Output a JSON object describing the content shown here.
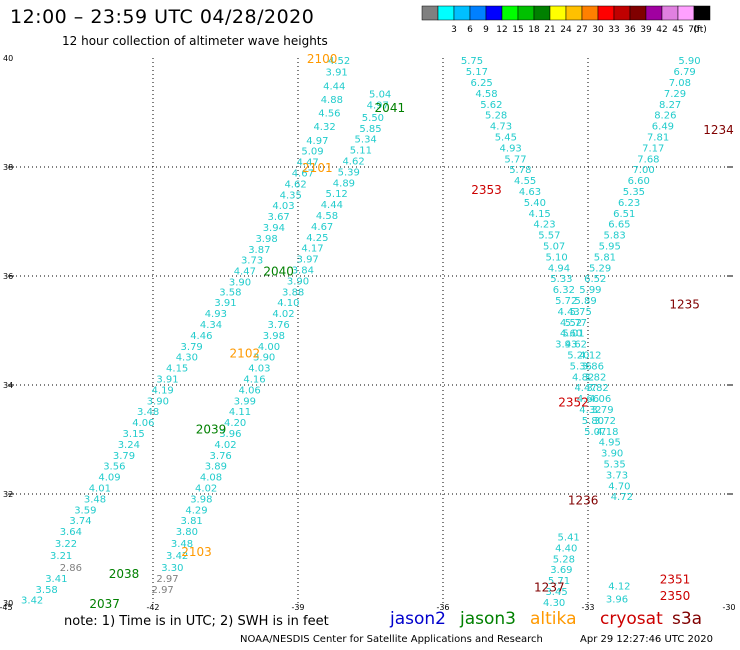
{
  "header": {
    "title": "12:00 – 23:59 UTC 04/28/2020",
    "subtitle": "12 hour collection of altimeter wave heights"
  },
  "legend": {
    "unit": "(ft)",
    "bins": [
      {
        "label": "",
        "color": "#808080"
      },
      {
        "label": "3",
        "color": "#00ffff"
      },
      {
        "label": "6",
        "color": "#00c0ff"
      },
      {
        "label": "9",
        "color": "#0080ff"
      },
      {
        "label": "12",
        "color": "#0000ff"
      },
      {
        "label": "15",
        "color": "#00ff00"
      },
      {
        "label": "18",
        "color": "#00c000"
      },
      {
        "label": "21",
        "color": "#008000"
      },
      {
        "label": "24",
        "color": "#ffff00"
      },
      {
        "label": "27",
        "color": "#ffc000"
      },
      {
        "label": "30",
        "color": "#ff8000"
      },
      {
        "label": "33",
        "color": "#ff0000"
      },
      {
        "label": "36",
        "color": "#c00000"
      },
      {
        "label": "39",
        "color": "#800000"
      },
      {
        "label": "42",
        "color": "#a000a0"
      },
      {
        "label": "45",
        "color": "#e080e0"
      },
      {
        "label": "70",
        "color": "#ffa0ff"
      },
      {
        "label": "",
        "color": "#000000"
      }
    ]
  },
  "note": "note:  1) Time is in UTC;  2) SWH is in feet",
  "satellites": [
    {
      "name": "jason2",
      "color": "#0000cc"
    },
    {
      "name": "jason3",
      "color": "#008000"
    },
    {
      "name": "altika",
      "color": "#ff9900"
    },
    {
      "name": "cryosat",
      "color": "#cc0000"
    },
    {
      "name": "s3a",
      "color": "#800000"
    }
  ],
  "footer": {
    "credit": "NOAA/NESDIS Center for Satellite Applications and Research",
    "timestamp": "Apr 29 12:27:46 UTC 2020"
  },
  "chart_data": {
    "type": "scatter",
    "title": "12:00 – 23:59 UTC 04/28/2020",
    "subtitle": "12 hour collection of altimeter wave heights",
    "xlim": [
      -45,
      -30
    ],
    "ylim": [
      30,
      40
    ],
    "xticks": [
      "-45",
      "-42",
      "-39",
      "-36",
      "-33",
      "-30"
    ],
    "yticks": [
      "30",
      "32",
      "34",
      "36",
      "38",
      "40"
    ],
    "grid": true,
    "colors": {
      "swh_cyan": "#22cccc",
      "swh_gray": "#808080",
      "time_jason3": "#008000",
      "time_altika": "#ff9900",
      "time_cryosat": "#cc0000",
      "time_s3a": "#800000"
    },
    "swh_points": [
      {
        "lon": -44.5,
        "lat": 30.06,
        "swh": "3.42"
      },
      {
        "lon": -44.2,
        "lat": 30.26,
        "swh": "3.58"
      },
      {
        "lon": -44.0,
        "lat": 30.46,
        "swh": "3.41"
      },
      {
        "lon": -43.7,
        "lat": 30.66,
        "swh": "2.86",
        "gray": true
      },
      {
        "lon": -43.9,
        "lat": 30.88,
        "swh": "3.21"
      },
      {
        "lon": -43.8,
        "lat": 31.1,
        "swh": "3.22"
      },
      {
        "lon": -43.7,
        "lat": 31.32,
        "swh": "3.64"
      },
      {
        "lon": -43.5,
        "lat": 31.52,
        "swh": "3.74"
      },
      {
        "lon": -43.4,
        "lat": 31.72,
        "swh": "3.59"
      },
      {
        "lon": -43.2,
        "lat": 31.92,
        "swh": "3.48"
      },
      {
        "lon": -43.1,
        "lat": 32.12,
        "swh": "4.01"
      },
      {
        "lon": -42.9,
        "lat": 32.32,
        "swh": "4.09"
      },
      {
        "lon": -42.8,
        "lat": 32.52,
        "swh": "3.56"
      },
      {
        "lon": -42.6,
        "lat": 32.72,
        "swh": "3.79"
      },
      {
        "lon": -42.5,
        "lat": 32.92,
        "swh": "3.24"
      },
      {
        "lon": -42.4,
        "lat": 33.12,
        "swh": "3.15"
      },
      {
        "lon": -42.2,
        "lat": 33.32,
        "swh": "4.06"
      },
      {
        "lon": -42.1,
        "lat": 33.52,
        "swh": "3.48"
      },
      {
        "lon": -41.9,
        "lat": 33.72,
        "swh": "3.90"
      },
      {
        "lon": -41.8,
        "lat": 33.92,
        "swh": "4.19"
      },
      {
        "lon": -41.7,
        "lat": 34.12,
        "swh": "3.91"
      },
      {
        "lon": -41.5,
        "lat": 34.32,
        "swh": "4.15"
      },
      {
        "lon": -41.3,
        "lat": 34.52,
        "swh": "4.30"
      },
      {
        "lon": -41.2,
        "lat": 34.72,
        "swh": "3.79"
      },
      {
        "lon": -41.0,
        "lat": 34.92,
        "swh": "4.46"
      },
      {
        "lon": -40.8,
        "lat": 35.12,
        "swh": "4.34"
      },
      {
        "lon": -40.7,
        "lat": 35.32,
        "swh": "4.93"
      },
      {
        "lon": -40.5,
        "lat": 35.52,
        "swh": "3.91"
      },
      {
        "lon": -40.4,
        "lat": 35.72,
        "swh": "3.58"
      },
      {
        "lon": -40.2,
        "lat": 35.9,
        "swh": "3.90"
      },
      {
        "lon": -40.1,
        "lat": 36.1,
        "swh": "4.47"
      },
      {
        "lon": -39.95,
        "lat": 36.3,
        "swh": "3.73"
      },
      {
        "lon": -39.8,
        "lat": 36.5,
        "swh": "3.87"
      },
      {
        "lon": -39.65,
        "lat": 36.7,
        "swh": "3.98"
      },
      {
        "lon": -39.5,
        "lat": 36.9,
        "swh": "3.94"
      },
      {
        "lon": -39.4,
        "lat": 37.1,
        "swh": "3.67"
      },
      {
        "lon": -39.3,
        "lat": 37.3,
        "swh": "4.03"
      },
      {
        "lon": -39.15,
        "lat": 37.5,
        "swh": "4.35"
      },
      {
        "lon": -39.05,
        "lat": 37.7,
        "swh": "4.62"
      },
      {
        "lon": -38.9,
        "lat": 37.9,
        "swh": "4.67"
      },
      {
        "lon": -38.8,
        "lat": 38.1,
        "swh": "4.47"
      },
      {
        "lon": -38.7,
        "lat": 38.3,
        "swh": "5.09"
      },
      {
        "lon": -38.6,
        "lat": 38.5,
        "swh": "4.97"
      },
      {
        "lon": -38.45,
        "lat": 38.75,
        "swh": "4.32"
      },
      {
        "lon": -38.35,
        "lat": 39.0,
        "swh": "4.56"
      },
      {
        "lon": -38.3,
        "lat": 39.25,
        "swh": "4.88"
      },
      {
        "lon": -38.25,
        "lat": 39.5,
        "swh": "4.44"
      },
      {
        "lon": -38.2,
        "lat": 39.75,
        "swh": "3.91"
      },
      {
        "lon": -38.15,
        "lat": 39.96,
        "swh": "4.52"
      },
      {
        "lon": -41.8,
        "lat": 30.26,
        "swh": "2.97",
        "gray": true
      },
      {
        "lon": -41.7,
        "lat": 30.46,
        "swh": "2.97",
        "gray": true
      },
      {
        "lon": -41.6,
        "lat": 30.66,
        "swh": "3.30"
      },
      {
        "lon": -41.5,
        "lat": 30.88,
        "swh": "3.42"
      },
      {
        "lon": -41.4,
        "lat": 31.1,
        "swh": "3.48"
      },
      {
        "lon": -41.3,
        "lat": 31.32,
        "swh": "3.80"
      },
      {
        "lon": -41.2,
        "lat": 31.52,
        "swh": "3.81"
      },
      {
        "lon": -41.1,
        "lat": 31.72,
        "swh": "4.29"
      },
      {
        "lon": -41.0,
        "lat": 31.92,
        "swh": "3.98"
      },
      {
        "lon": -40.9,
        "lat": 32.12,
        "swh": "4.02"
      },
      {
        "lon": -40.8,
        "lat": 32.32,
        "swh": "4.08"
      },
      {
        "lon": -40.7,
        "lat": 32.52,
        "swh": "3.89"
      },
      {
        "lon": -40.6,
        "lat": 32.72,
        "swh": "3.76"
      },
      {
        "lon": -40.5,
        "lat": 32.92,
        "swh": "4.02"
      },
      {
        "lon": -40.4,
        "lat": 33.12,
        "swh": "3.96"
      },
      {
        "lon": -40.3,
        "lat": 33.32,
        "swh": "4.20"
      },
      {
        "lon": -40.2,
        "lat": 33.52,
        "swh": "4.11"
      },
      {
        "lon": -40.1,
        "lat": 33.72,
        "swh": "3.99"
      },
      {
        "lon": -40.0,
        "lat": 33.92,
        "swh": "4.06"
      },
      {
        "lon": -39.9,
        "lat": 34.12,
        "swh": "4.16"
      },
      {
        "lon": -39.8,
        "lat": 34.32,
        "swh": "4.03"
      },
      {
        "lon": -39.7,
        "lat": 34.52,
        "swh": "3.90"
      },
      {
        "lon": -39.6,
        "lat": 34.72,
        "swh": "4.00"
      },
      {
        "lon": -39.5,
        "lat": 34.92,
        "swh": "3.98"
      },
      {
        "lon": -39.4,
        "lat": 35.12,
        "swh": "3.76"
      },
      {
        "lon": -39.3,
        "lat": 35.32,
        "swh": "4.02"
      },
      {
        "lon": -39.2,
        "lat": 35.52,
        "swh": "4.10"
      },
      {
        "lon": -39.1,
        "lat": 35.72,
        "swh": "3.88"
      },
      {
        "lon": -39.0,
        "lat": 35.92,
        "swh": "3.90"
      },
      {
        "lon": -38.9,
        "lat": 36.12,
        "swh": "3.84"
      },
      {
        "lon": -38.8,
        "lat": 36.32,
        "swh": "3.97"
      },
      {
        "lon": -38.7,
        "lat": 36.52,
        "swh": "4.17"
      },
      {
        "lon": -38.6,
        "lat": 36.72,
        "swh": "4.25"
      },
      {
        "lon": -38.5,
        "lat": 36.92,
        "swh": "4.67"
      },
      {
        "lon": -38.4,
        "lat": 37.12,
        "swh": "4.58"
      },
      {
        "lon": -38.3,
        "lat": 37.32,
        "swh": "4.44"
      },
      {
        "lon": -38.2,
        "lat": 37.52,
        "swh": "5.12"
      },
      {
        "lon": -38.05,
        "lat": 37.72,
        "swh": "4.89"
      },
      {
        "lon": -37.95,
        "lat": 37.92,
        "swh": "5.39"
      },
      {
        "lon": -37.85,
        "lat": 38.12,
        "swh": "4.62"
      },
      {
        "lon": -37.7,
        "lat": 38.32,
        "swh": "5.11"
      },
      {
        "lon": -37.6,
        "lat": 38.52,
        "swh": "5.34"
      },
      {
        "lon": -37.5,
        "lat": 38.72,
        "swh": "5.85"
      },
      {
        "lon": -37.45,
        "lat": 38.92,
        "swh": "5.50"
      },
      {
        "lon": -37.35,
        "lat": 39.15,
        "swh": "4.97"
      },
      {
        "lon": -37.3,
        "lat": 39.35,
        "swh": "5.04"
      },
      {
        "lon": -35.4,
        "lat": 39.96,
        "swh": "5.75"
      },
      {
        "lon": -35.3,
        "lat": 39.76,
        "swh": "5.17"
      },
      {
        "lon": -35.2,
        "lat": 39.56,
        "swh": "6.25"
      },
      {
        "lon": -35.1,
        "lat": 39.36,
        "swh": "4.58"
      },
      {
        "lon": -35.0,
        "lat": 39.16,
        "swh": "5.62"
      },
      {
        "lon": -34.9,
        "lat": 38.96,
        "swh": "5.28"
      },
      {
        "lon": -34.8,
        "lat": 38.76,
        "swh": "4.73"
      },
      {
        "lon": -34.7,
        "lat": 38.56,
        "swh": "5.45"
      },
      {
        "lon": -34.6,
        "lat": 38.36,
        "swh": "4.93"
      },
      {
        "lon": -34.5,
        "lat": 38.16,
        "swh": "5.77"
      },
      {
        "lon": -34.4,
        "lat": 37.96,
        "swh": "5.78"
      },
      {
        "lon": -34.3,
        "lat": 37.76,
        "swh": "4.55"
      },
      {
        "lon": -34.2,
        "lat": 37.56,
        "swh": "4.63"
      },
      {
        "lon": -34.1,
        "lat": 37.36,
        "swh": "5.40"
      },
      {
        "lon": -34.0,
        "lat": 37.16,
        "swh": "4.15"
      },
      {
        "lon": -33.9,
        "lat": 36.96,
        "swh": "4.23"
      },
      {
        "lon": -33.8,
        "lat": 36.76,
        "swh": "5.57"
      },
      {
        "lon": -33.7,
        "lat": 36.56,
        "swh": "5.07"
      },
      {
        "lon": -33.65,
        "lat": 36.36,
        "swh": "5.10"
      },
      {
        "lon": -33.6,
        "lat": 36.16,
        "swh": "4.94"
      },
      {
        "lon": -33.55,
        "lat": 35.96,
        "swh": "5.33"
      },
      {
        "lon": -33.5,
        "lat": 35.76,
        "swh": "6.32"
      },
      {
        "lon": -33.45,
        "lat": 35.56,
        "swh": "5.72"
      },
      {
        "lon": -33.4,
        "lat": 35.36,
        "swh": "4.43"
      },
      {
        "lon": -33.35,
        "lat": 35.16,
        "swh": "4.52"
      },
      {
        "lon": -33.3,
        "lat": 34.96,
        "swh": "5.01"
      },
      {
        "lon": -33.25,
        "lat": 34.76,
        "swh": "4.62"
      },
      {
        "lon": -33.2,
        "lat": 34.56,
        "swh": "5.20"
      },
      {
        "lon": -33.15,
        "lat": 34.36,
        "swh": "5.36"
      },
      {
        "lon": -33.1,
        "lat": 34.16,
        "swh": "4.82"
      },
      {
        "lon": -33.05,
        "lat": 33.96,
        "swh": "4.47"
      },
      {
        "lon": -33.0,
        "lat": 33.76,
        "swh": "4.66"
      },
      {
        "lon": -32.95,
        "lat": 33.56,
        "swh": "4.32"
      },
      {
        "lon": -32.9,
        "lat": 33.36,
        "swh": "5.80"
      },
      {
        "lon": -32.85,
        "lat": 33.16,
        "swh": "5.07"
      },
      {
        "lon": -33.4,
        "lat": 31.22,
        "swh": "5.41"
      },
      {
        "lon": -33.45,
        "lat": 31.02,
        "swh": "4.40"
      },
      {
        "lon": -33.5,
        "lat": 30.82,
        "swh": "5.28"
      },
      {
        "lon": -33.55,
        "lat": 30.62,
        "swh": "3.69"
      },
      {
        "lon": -33.6,
        "lat": 30.42,
        "swh": "5.71"
      },
      {
        "lon": -33.65,
        "lat": 30.22,
        "swh": "3.45"
      },
      {
        "lon": -33.7,
        "lat": 30.02,
        "swh": "4.30"
      },
      {
        "lon": -30.9,
        "lat": 39.96,
        "swh": "5.90"
      },
      {
        "lon": -31.0,
        "lat": 39.76,
        "swh": "6.79"
      },
      {
        "lon": -31.1,
        "lat": 39.56,
        "swh": "7.08"
      },
      {
        "lon": -31.2,
        "lat": 39.36,
        "swh": "7.29"
      },
      {
        "lon": -31.3,
        "lat": 39.16,
        "swh": "8.27"
      },
      {
        "lon": -31.4,
        "lat": 38.96,
        "swh": "8.26"
      },
      {
        "lon": -31.45,
        "lat": 38.76,
        "swh": "6.49"
      },
      {
        "lon": -31.55,
        "lat": 38.56,
        "swh": "7.81"
      },
      {
        "lon": -31.65,
        "lat": 38.36,
        "swh": "7.17"
      },
      {
        "lon": -31.75,
        "lat": 38.16,
        "swh": "7.68"
      },
      {
        "lon": -31.85,
        "lat": 37.96,
        "swh": "7.00"
      },
      {
        "lon": -31.95,
        "lat": 37.76,
        "swh": "6.60"
      },
      {
        "lon": -32.05,
        "lat": 37.56,
        "swh": "5.35"
      },
      {
        "lon": -32.15,
        "lat": 37.36,
        "swh": "6.23"
      },
      {
        "lon": -32.25,
        "lat": 37.16,
        "swh": "6.51"
      },
      {
        "lon": -32.35,
        "lat": 36.96,
        "swh": "6.65"
      },
      {
        "lon": -32.45,
        "lat": 36.76,
        "swh": "5.83"
      },
      {
        "lon": -32.55,
        "lat": 36.56,
        "swh": "5.95"
      },
      {
        "lon": -32.65,
        "lat": 36.36,
        "swh": "5.81"
      },
      {
        "lon": -32.75,
        "lat": 36.16,
        "swh": "5.29"
      },
      {
        "lon": -32.85,
        "lat": 35.96,
        "swh": "6.52"
      },
      {
        "lon": -32.95,
        "lat": 35.76,
        "swh": "5.99"
      },
      {
        "lon": -33.05,
        "lat": 35.56,
        "swh": "5.89"
      },
      {
        "lon": -33.15,
        "lat": 35.36,
        "swh": "5.75"
      },
      {
        "lon": -33.25,
        "lat": 35.16,
        "swh": "5.77"
      },
      {
        "lon": -33.35,
        "lat": 34.96,
        "swh": "4.60"
      },
      {
        "lon": -33.45,
        "lat": 34.76,
        "swh": "3.93"
      },
      {
        "lon": -32.95,
        "lat": 34.56,
        "swh": "4.12"
      },
      {
        "lon": -32.9,
        "lat": 34.36,
        "swh": "3.86"
      },
      {
        "lon": -32.85,
        "lat": 34.16,
        "swh": "3.82"
      },
      {
        "lon": -32.8,
        "lat": 33.96,
        "swh": "3.82"
      },
      {
        "lon": -32.75,
        "lat": 33.76,
        "swh": "4.06"
      },
      {
        "lon": -32.7,
        "lat": 33.56,
        "swh": "3.79"
      },
      {
        "lon": -32.65,
        "lat": 33.36,
        "swh": "3.72"
      },
      {
        "lon": -32.6,
        "lat": 33.16,
        "swh": "4.18"
      },
      {
        "lon": -32.55,
        "lat": 32.96,
        "swh": "4.95"
      },
      {
        "lon": -32.5,
        "lat": 32.76,
        "swh": "3.90"
      },
      {
        "lon": -32.45,
        "lat": 32.56,
        "swh": "5.35"
      },
      {
        "lon": -32.4,
        "lat": 32.36,
        "swh": "3.73"
      },
      {
        "lon": -32.35,
        "lat": 32.16,
        "swh": "4.70"
      },
      {
        "lon": -32.3,
        "lat": 31.96,
        "swh": "4.72"
      },
      {
        "lon": -32.35,
        "lat": 30.32,
        "swh": "4.12"
      },
      {
        "lon": -32.4,
        "lat": 30.08,
        "swh": "3.96"
      }
    ],
    "time_labels": [
      {
        "lon": -38.5,
        "lat": 40.0,
        "text": "2100",
        "sat": "altika"
      },
      {
        "lon": -37.1,
        "lat": 39.1,
        "text": "2041",
        "sat": "jason3"
      },
      {
        "lon": -38.6,
        "lat": 38.0,
        "text": "2101",
        "sat": "altika"
      },
      {
        "lon": -39.4,
        "lat": 36.1,
        "text": "2040",
        "sat": "jason3"
      },
      {
        "lon": -40.1,
        "lat": 34.6,
        "text": "2102",
        "sat": "altika"
      },
      {
        "lon": -40.8,
        "lat": 33.2,
        "text": "2039",
        "sat": "jason3"
      },
      {
        "lon": -41.1,
        "lat": 30.95,
        "text": "2103",
        "sat": "altika"
      },
      {
        "lon": -42.6,
        "lat": 30.55,
        "text": "2038",
        "sat": "jason3"
      },
      {
        "lon": -43.0,
        "lat": 30.0,
        "text": "2037",
        "sat": "jason3"
      },
      {
        "lon": -35.1,
        "lat": 37.6,
        "text": "2353",
        "sat": "cryosat"
      },
      {
        "lon": -30.3,
        "lat": 38.7,
        "text": "1234",
        "sat": "s3a"
      },
      {
        "lon": -31.0,
        "lat": 35.5,
        "text": "1235",
        "sat": "s3a"
      },
      {
        "lon": -33.3,
        "lat": 33.7,
        "text": "2352",
        "sat": "cryosat"
      },
      {
        "lon": -33.1,
        "lat": 31.9,
        "text": "1236",
        "sat": "s3a"
      },
      {
        "lon": -33.8,
        "lat": 30.3,
        "text": "1237",
        "sat": "s3a"
      },
      {
        "lon": -31.2,
        "lat": 30.45,
        "text": "2351",
        "sat": "cryosat"
      },
      {
        "lon": -31.2,
        "lat": 30.15,
        "text": "2350",
        "sat": "cryosat"
      }
    ]
  }
}
